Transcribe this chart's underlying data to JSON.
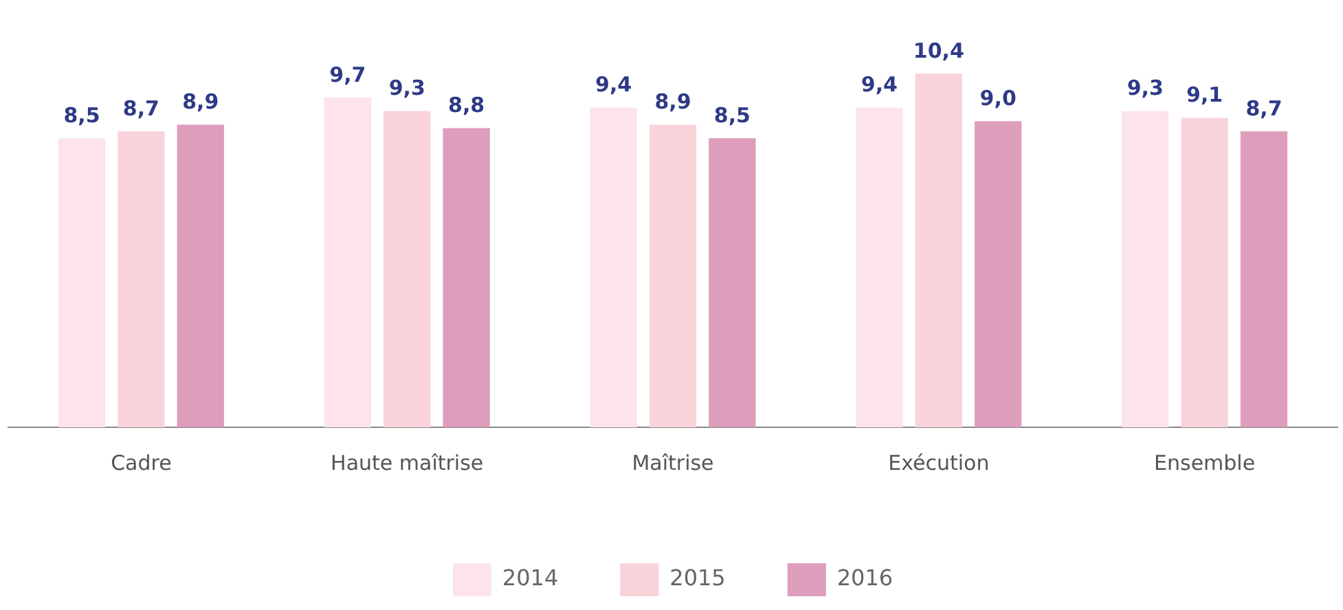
{
  "chart_data": {
    "type": "bar",
    "categories": [
      "Cadre",
      "Haute maîtrise",
      "Maîtrise",
      "Exécution",
      "Ensemble"
    ],
    "series": [
      {
        "name": "2014",
        "color": "#fce4ea",
        "values": [
          8.5,
          9.7,
          9.4,
          9.4,
          9.3
        ],
        "value_labels": [
          "8,5",
          "9,7",
          "9,4",
          "9,4",
          "9,3"
        ]
      },
      {
        "name": "2015",
        "color": "#f9d3da",
        "values": [
          8.7,
          9.3,
          8.9,
          10.4,
          9.1
        ],
        "value_labels": [
          "8,7",
          "9,3",
          "8,9",
          "10,4",
          "9,1"
        ]
      },
      {
        "name": "2016",
        "color": "#dd9dbb",
        "values": [
          8.9,
          8.8,
          8.5,
          9.0,
          8.7
        ],
        "value_labels": [
          "8,9",
          "8,8",
          "8,5",
          "9,0",
          "8,7"
        ]
      }
    ],
    "tick_labels": "x",
    "grid": false,
    "legend": "bottom"
  }
}
